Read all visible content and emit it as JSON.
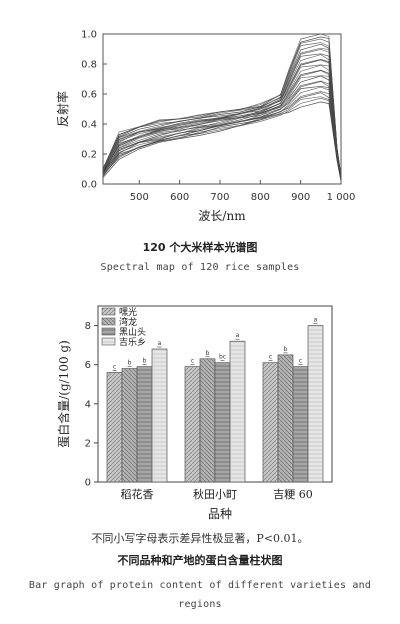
{
  "chart_data": [
    {
      "type": "line",
      "title": "120 个大米样本光谱图",
      "subtitle": "Spectral map of 120 rice samples",
      "xlabel": "波长/nm",
      "ylabel": "反射率",
      "xlim": [
        410,
        1000
      ],
      "ylim": [
        0.0,
        1.0
      ],
      "xticks": [
        "500",
        "600",
        "700",
        "800",
        "900",
        "1 000"
      ],
      "yticks": [
        "0.0",
        "0.2",
        "0.4",
        "0.6",
        "0.8",
        "1.0"
      ],
      "x": [
        410,
        450,
        500,
        550,
        600,
        650,
        700,
        750,
        800,
        850,
        870,
        900,
        950,
        970,
        990,
        1000
      ],
      "series_envelope": {
        "low": [
          0.05,
          0.17,
          0.23,
          0.27,
          0.3,
          0.33,
          0.36,
          0.39,
          0.42,
          0.46,
          0.48,
          0.52,
          0.55,
          0.53,
          0.15,
          0.02
        ],
        "high": [
          0.1,
          0.34,
          0.39,
          0.42,
          0.44,
          0.46,
          0.48,
          0.5,
          0.53,
          0.6,
          0.75,
          0.97,
          1.0,
          0.98,
          0.25,
          0.05
        ]
      },
      "series_count": 120
    },
    {
      "type": "bar",
      "title": "不同品种和产地的蛋白含量柱状图",
      "subtitle": "Bar graph of protein content of different varieties and regions",
      "note": "不同小写字母表示差异性极显著，P<0.01。",
      "xlabel": "品种",
      "ylabel": "蛋白含量/(g/100 g)",
      "ylim": [
        0,
        9
      ],
      "yticks": [
        "0",
        "2",
        "4",
        "6",
        "8"
      ],
      "categories": [
        "稻花香",
        "秋田小町",
        "吉粳 60"
      ],
      "series": [
        {
          "name": "嘿光",
          "values": [
            5.6,
            5.9,
            6.1
          ],
          "letters": [
            "c",
            "c",
            "c"
          ]
        },
        {
          "name": "湾龙",
          "values": [
            5.8,
            6.3,
            6.5
          ],
          "letters": [
            "b",
            "b",
            "b"
          ]
        },
        {
          "name": "黑山头",
          "values": [
            5.9,
            6.1,
            5.9
          ],
          "letters": [
            "b",
            "bc",
            "c"
          ]
        },
        {
          "name": "吉乐乡",
          "values": [
            6.8,
            7.2,
            8.0
          ],
          "letters": [
            "a",
            "a",
            "a"
          ]
        }
      ],
      "colors": [
        "#c8c8c8",
        "#b4b4b4",
        "#a6a6a6",
        "#e6e6e6"
      ]
    }
  ]
}
